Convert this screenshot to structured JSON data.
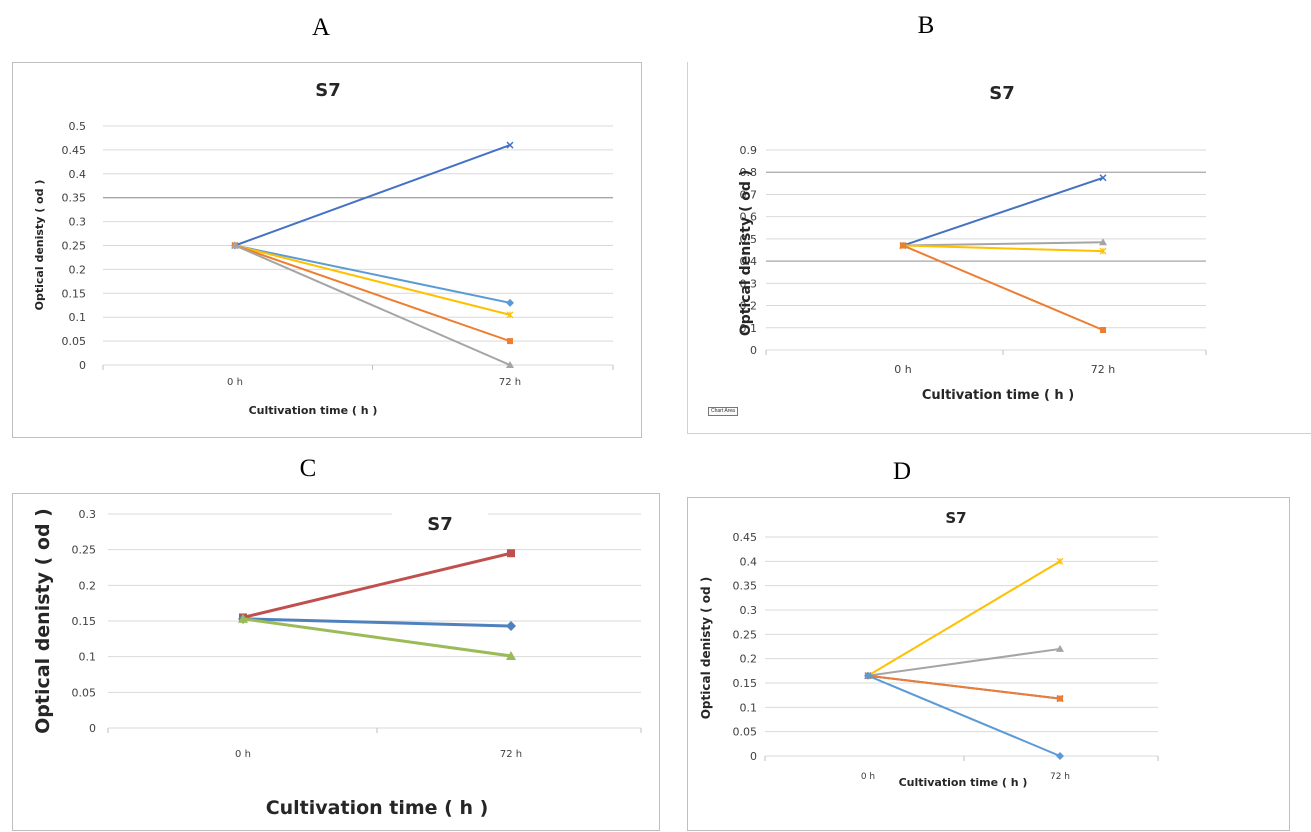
{
  "panels": [
    "A",
    "B",
    "C",
    "D"
  ],
  "chart_area_tag": "Chart Area",
  "colors": {
    "blue_dark": "#4472C4",
    "orange": "#ED7D31",
    "gray": "#A5A5A5",
    "yellow": "#FFC000",
    "blue_light": "#5B9BD5",
    "red": "#C0504D",
    "blue_c": "#4F81BD",
    "green": "#9BBB59",
    "gridline": "#d9d9d9",
    "gridline_dark": "#a6a6a6"
  },
  "chart_data": [
    {
      "type": "line",
      "panel": "A",
      "title": "S7",
      "xlabel": "Cultivation time ( h )",
      "ylabel": "Optical denisty ( od )",
      "categories": [
        "0 h",
        "72 h"
      ],
      "ylim": [
        0,
        0.5
      ],
      "yticks": [
        "0",
        "0.05",
        "0.1",
        "0.15",
        "0.2",
        "0.25",
        "0.3",
        "0.35",
        "0.4",
        "0.45",
        "0.5"
      ],
      "grid": true,
      "series": [
        {
          "color": "#4472C4",
          "marker": "x",
          "values": [
            0.25,
            0.46
          ]
        },
        {
          "color": "#5B9BD5",
          "marker": "diamond",
          "values": [
            0.25,
            0.13
          ]
        },
        {
          "color": "#FFC000",
          "marker": "star",
          "values": [
            0.25,
            0.105
          ]
        },
        {
          "color": "#ED7D31",
          "marker": "square",
          "values": [
            0.25,
            0.05
          ]
        },
        {
          "color": "#A5A5A5",
          "marker": "triangle",
          "values": [
            0.25,
            0.0
          ]
        }
      ]
    },
    {
      "type": "line",
      "panel": "B",
      "title": "S7",
      "xlabel": "Cultivation time ( h )",
      "ylabel": "Optical denisty ( od )",
      "categories": [
        "0 h",
        "72 h"
      ],
      "ylim": [
        0,
        0.9
      ],
      "yticks": [
        "0",
        "0.1",
        "0.2",
        "0.3",
        "0.4",
        "0.5",
        "0.6",
        "0.7",
        "0.8",
        "0.9"
      ],
      "grid": true,
      "series": [
        {
          "color": "#4472C4",
          "marker": "x",
          "values": [
            0.47,
            0.775
          ]
        },
        {
          "color": "#A5A5A5",
          "marker": "triangle",
          "values": [
            0.47,
            0.485
          ]
        },
        {
          "color": "#FFC000",
          "marker": "star",
          "values": [
            0.47,
            0.445
          ]
        },
        {
          "color": "#ED7D31",
          "marker": "square",
          "values": [
            0.47,
            0.09
          ]
        }
      ]
    },
    {
      "type": "line",
      "panel": "C",
      "title": "S7",
      "xlabel": "Cultivation time ( h )",
      "ylabel": "Optical denisty ( od )",
      "categories": [
        "0 h",
        "72 h"
      ],
      "ylim": [
        0,
        0.3
      ],
      "yticks": [
        "0",
        "0.05",
        "0.1",
        "0.15",
        "0.2",
        "0.25",
        "0.3"
      ],
      "grid": true,
      "series": [
        {
          "color": "#C0504D",
          "marker": "square",
          "values": [
            0.155,
            0.245
          ]
        },
        {
          "color": "#4F81BD",
          "marker": "diamond",
          "values": [
            0.153,
            0.143
          ]
        },
        {
          "color": "#9BBB59",
          "marker": "triangle",
          "values": [
            0.153,
            0.101
          ]
        }
      ]
    },
    {
      "type": "line",
      "panel": "D",
      "title": "S7",
      "xlabel": "Cultivation time ( h )",
      "ylabel": "Optical denisty ( od )",
      "categories": [
        "0 h",
        "72 h"
      ],
      "ylim": [
        0,
        0.45
      ],
      "yticks": [
        "0",
        "0.05",
        "0.1",
        "0.15",
        "0.2",
        "0.25",
        "0.3",
        "0.35",
        "0.4",
        "0.45"
      ],
      "grid": true,
      "series": [
        {
          "color": "#FFC000",
          "marker": "star",
          "values": [
            0.165,
            0.4
          ]
        },
        {
          "color": "#A5A5A5",
          "marker": "triangle",
          "values": [
            0.165,
            0.22
          ]
        },
        {
          "color": "#4472C4",
          "marker": "x",
          "values": [
            0.165,
            0.118
          ]
        },
        {
          "color": "#ED7D31",
          "marker": "square",
          "values": [
            0.165,
            0.118
          ]
        },
        {
          "color": "#5B9BD5",
          "marker": "diamond",
          "values": [
            0.165,
            0.0
          ]
        }
      ]
    }
  ]
}
